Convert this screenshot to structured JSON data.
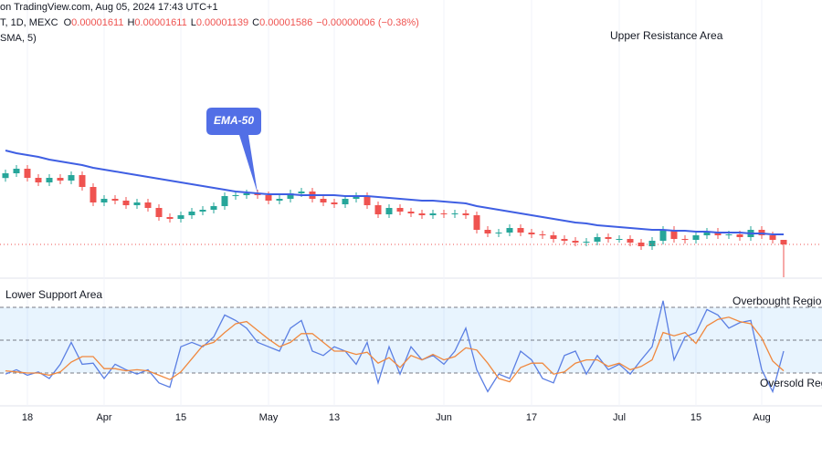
{
  "header": {
    "source": "on TradingView.com, Aug 05, 2024 17:43 UTC+1",
    "symbol": "T, 1D, MEXC",
    "ohlc": [
      {
        "key": "O",
        "text": "0.00001611"
      },
      {
        "key": "H",
        "text": "0.00001611"
      },
      {
        "key": "L",
        "text": "0.00001139"
      },
      {
        "key": "C",
        "text": "0.00001586"
      }
    ],
    "change": "−0.00000006 (−0.38%)",
    "indicator": "SMA, 5)"
  },
  "chart_data": [
    {
      "type": "candlestick",
      "categories": [
        null,
        null,
        "18",
        null,
        null,
        null,
        null,
        null,
        null,
        "Apr",
        null,
        null,
        null,
        null,
        null,
        null,
        "15",
        null,
        null,
        null,
        null,
        null,
        null,
        null,
        "May",
        null,
        null,
        null,
        null,
        null,
        "13",
        null,
        null,
        null,
        null,
        null,
        null,
        null,
        null,
        null,
        "Jun",
        null,
        null,
        null,
        null,
        null,
        null,
        null,
        "17",
        null,
        null,
        null,
        null,
        null,
        null,
        null,
        "Jul",
        null,
        null,
        null,
        null,
        null,
        null,
        "15",
        null,
        null,
        null,
        null,
        null,
        "Aug",
        null,
        null
      ],
      "open": [
        1.95e-05,
        1.976e-05,
        2.001e-05,
        1.951e-05,
        1.926e-05,
        1.951e-05,
        1.936e-05,
        1.966e-05,
        1.901e-05,
        1.816e-05,
        1.836e-05,
        1.826e-05,
        1.801e-05,
        1.816e-05,
        1.786e-05,
        1.736e-05,
        1.726e-05,
        1.746e-05,
        1.766e-05,
        1.776e-05,
        1.796e-05,
        1.851e-05,
        1.856e-05,
        1.866e-05,
        1.856e-05,
        1.826e-05,
        1.836e-05,
        1.866e-05,
        1.876e-05,
        1.836e-05,
        1.816e-05,
        1.806e-05,
        1.836e-05,
        1.851e-05,
        1.801e-05,
        1.751e-05,
        1.786e-05,
        1.766e-05,
        1.756e-05,
        1.746e-05,
        1.756e-05,
        1.751e-05,
        1.756e-05,
        1.746e-05,
        1.666e-05,
        1.646e-05,
        1.651e-05,
        1.676e-05,
        1.651e-05,
        1.641e-05,
        1.636e-05,
        1.616e-05,
        1.606e-05,
        1.596e-05,
        1.601e-05,
        1.626e-05,
        1.616e-05,
        1.616e-05,
        1.596e-05,
        1.576e-05,
        1.606e-05,
        1.666e-05,
        1.616e-05,
        1.611e-05,
        1.636e-05,
        1.656e-05,
        1.636e-05,
        1.641e-05,
        1.626e-05,
        1.666e-05,
        1.636e-05,
        1.611e-05
      ],
      "high": [
        1.996e-05,
        2.021e-05,
        2.021e-05,
        1.971e-05,
        1.971e-05,
        1.971e-05,
        1.986e-05,
        1.986e-05,
        1.921e-05,
        1.856e-05,
        1.856e-05,
        1.846e-05,
        1.836e-05,
        1.836e-05,
        1.806e-05,
        1.756e-05,
        1.766e-05,
        1.786e-05,
        1.796e-05,
        1.816e-05,
        1.871e-05,
        1.876e-05,
        1.886e-05,
        1.886e-05,
        1.876e-05,
        1.856e-05,
        1.886e-05,
        1.896e-05,
        1.896e-05,
        1.856e-05,
        1.836e-05,
        1.856e-05,
        1.871e-05,
        1.871e-05,
        1.821e-05,
        1.806e-05,
        1.806e-05,
        1.786e-05,
        1.776e-05,
        1.776e-05,
        1.776e-05,
        1.776e-05,
        1.776e-05,
        1.766e-05,
        1.686e-05,
        1.671e-05,
        1.696e-05,
        1.696e-05,
        1.671e-05,
        1.661e-05,
        1.656e-05,
        1.636e-05,
        1.626e-05,
        1.621e-05,
        1.646e-05,
        1.646e-05,
        1.636e-05,
        1.636e-05,
        1.616e-05,
        1.626e-05,
        1.686e-05,
        1.686e-05,
        1.636e-05,
        1.656e-05,
        1.676e-05,
        1.676e-05,
        1.661e-05,
        1.661e-05,
        1.686e-05,
        1.686e-05,
        1.656e-05,
        1.611e-05
      ],
      "low": [
        1.93e-05,
        1.956e-05,
        1.931e-05,
        1.906e-05,
        1.906e-05,
        1.916e-05,
        1.916e-05,
        1.881e-05,
        1.796e-05,
        1.796e-05,
        1.806e-05,
        1.781e-05,
        1.781e-05,
        1.766e-05,
        1.716e-05,
        1.706e-05,
        1.706e-05,
        1.726e-05,
        1.746e-05,
        1.756e-05,
        1.776e-05,
        1.831e-05,
        1.836e-05,
        1.836e-05,
        1.806e-05,
        1.806e-05,
        1.816e-05,
        1.846e-05,
        1.816e-05,
        1.796e-05,
        1.786e-05,
        1.786e-05,
        1.816e-05,
        1.781e-05,
        1.731e-05,
        1.731e-05,
        1.746e-05,
        1.736e-05,
        1.726e-05,
        1.726e-05,
        1.731e-05,
        1.731e-05,
        1.726e-05,
        1.646e-05,
        1.626e-05,
        1.626e-05,
        1.631e-05,
        1.631e-05,
        1.621e-05,
        1.616e-05,
        1.596e-05,
        1.586e-05,
        1.576e-05,
        1.576e-05,
        1.581e-05,
        1.596e-05,
        1.596e-05,
        1.576e-05,
        1.556e-05,
        1.556e-05,
        1.586e-05,
        1.596e-05,
        1.591e-05,
        1.591e-05,
        1.616e-05,
        1.616e-05,
        1.616e-05,
        1.606e-05,
        1.606e-05,
        1.616e-05,
        1.591e-05,
        1.139e-05
      ],
      "close": [
        1.976e-05,
        2.001e-05,
        1.951e-05,
        1.926e-05,
        1.951e-05,
        1.936e-05,
        1.966e-05,
        1.901e-05,
        1.816e-05,
        1.836e-05,
        1.826e-05,
        1.801e-05,
        1.816e-05,
        1.786e-05,
        1.736e-05,
        1.726e-05,
        1.746e-05,
        1.766e-05,
        1.776e-05,
        1.796e-05,
        1.851e-05,
        1.856e-05,
        1.866e-05,
        1.856e-05,
        1.826e-05,
        1.836e-05,
        1.866e-05,
        1.876e-05,
        1.836e-05,
        1.816e-05,
        1.806e-05,
        1.836e-05,
        1.851e-05,
        1.801e-05,
        1.751e-05,
        1.786e-05,
        1.766e-05,
        1.756e-05,
        1.746e-05,
        1.756e-05,
        1.751e-05,
        1.756e-05,
        1.746e-05,
        1.666e-05,
        1.646e-05,
        1.651e-05,
        1.676e-05,
        1.651e-05,
        1.641e-05,
        1.636e-05,
        1.616e-05,
        1.606e-05,
        1.596e-05,
        1.601e-05,
        1.626e-05,
        1.616e-05,
        1.616e-05,
        1.596e-05,
        1.576e-05,
        1.606e-05,
        1.666e-05,
        1.616e-05,
        1.611e-05,
        1.636e-05,
        1.656e-05,
        1.636e-05,
        1.641e-05,
        1.626e-05,
        1.666e-05,
        1.636e-05,
        1.611e-05,
        1.586e-05
      ],
      "up_color": "#26a69a",
      "down_color": "#ef5350",
      "series": [
        {
          "name": "EMA-50",
          "color": "#3f5fe3",
          "values": [
            2.101e-05,
            2.086e-05,
            2.076e-05,
            2.066e-05,
            2.051e-05,
            2.041e-05,
            2.031e-05,
            2.021e-05,
            2.006e-05,
            1.996e-05,
            1.986e-05,
            1.976e-05,
            1.966e-05,
            1.956e-05,
            1.946e-05,
            1.936e-05,
            1.926e-05,
            1.916e-05,
            1.906e-05,
            1.896e-05,
            1.886e-05,
            1.876e-05,
            1.871e-05,
            1.866e-05,
            1.861e-05,
            1.861e-05,
            1.861e-05,
            1.856e-05,
            1.856e-05,
            1.856e-05,
            1.856e-05,
            1.851e-05,
            1.851e-05,
            1.851e-05,
            1.846e-05,
            1.841e-05,
            1.836e-05,
            1.831e-05,
            1.826e-05,
            1.826e-05,
            1.821e-05,
            1.816e-05,
            1.811e-05,
            1.796e-05,
            1.786e-05,
            1.776e-05,
            1.766e-05,
            1.756e-05,
            1.746e-05,
            1.736e-05,
            1.726e-05,
            1.716e-05,
            1.706e-05,
            1.701e-05,
            1.691e-05,
            1.686e-05,
            1.681e-05,
            1.676e-05,
            1.671e-05,
            1.666e-05,
            1.666e-05,
            1.661e-05,
            1.661e-05,
            1.656e-05,
            1.656e-05,
            1.651e-05,
            1.651e-05,
            1.651e-05,
            1.646e-05,
            1.646e-05,
            1.641e-05,
            1.641e-05
          ]
        }
      ],
      "ylim": [
        1.426e-05,
        2.826e-05
      ],
      "annotations": [
        "Upper Resistance Area"
      ]
    },
    {
      "type": "line",
      "series": [
        {
          "color": "#5b7fe3",
          "values": [
            19,
            23,
            18,
            21,
            15,
            28,
            48,
            28,
            29,
            15,
            28,
            23,
            19,
            23,
            11,
            7,
            44,
            48,
            44,
            53,
            73,
            68,
            61,
            48,
            44,
            40,
            61,
            68,
            40,
            36,
            44,
            40,
            28,
            48,
            11,
            44,
            19,
            44,
            32,
            36,
            28,
            40,
            61,
            23,
            3,
            19,
            15,
            40,
            32,
            15,
            11,
            36,
            40,
            19,
            36,
            23,
            28,
            19,
            32,
            44,
            86,
            32,
            53,
            57,
            78,
            73,
            61,
            66,
            68,
            23,
            3,
            40
          ]
        },
        {
          "color": "#f0883e",
          "values": [
            22,
            21,
            20,
            20,
            18,
            21,
            30,
            35,
            35,
            24,
            24,
            22,
            23,
            22,
            18,
            14,
            21,
            33,
            45,
            48,
            57,
            65,
            67,
            59,
            51,
            44,
            48,
            56,
            56,
            48,
            40,
            40,
            37,
            39,
            29,
            34,
            25,
            36,
            32,
            37,
            32,
            35,
            43,
            41,
            29,
            15,
            12,
            25,
            29,
            29,
            19,
            21,
            29,
            32,
            32,
            26,
            29,
            23,
            26,
            32,
            57,
            54,
            57,
            47,
            63,
            69,
            71,
            67,
            65,
            52,
            31,
            22
          ]
        }
      ],
      "ylim": [
        0,
        100
      ],
      "levels": [
        80,
        50,
        20
      ],
      "band_color": "#2196f3",
      "annotations": [
        "Lower Support Area",
        "Overbought Region",
        "Oversold Region"
      ]
    }
  ]
}
